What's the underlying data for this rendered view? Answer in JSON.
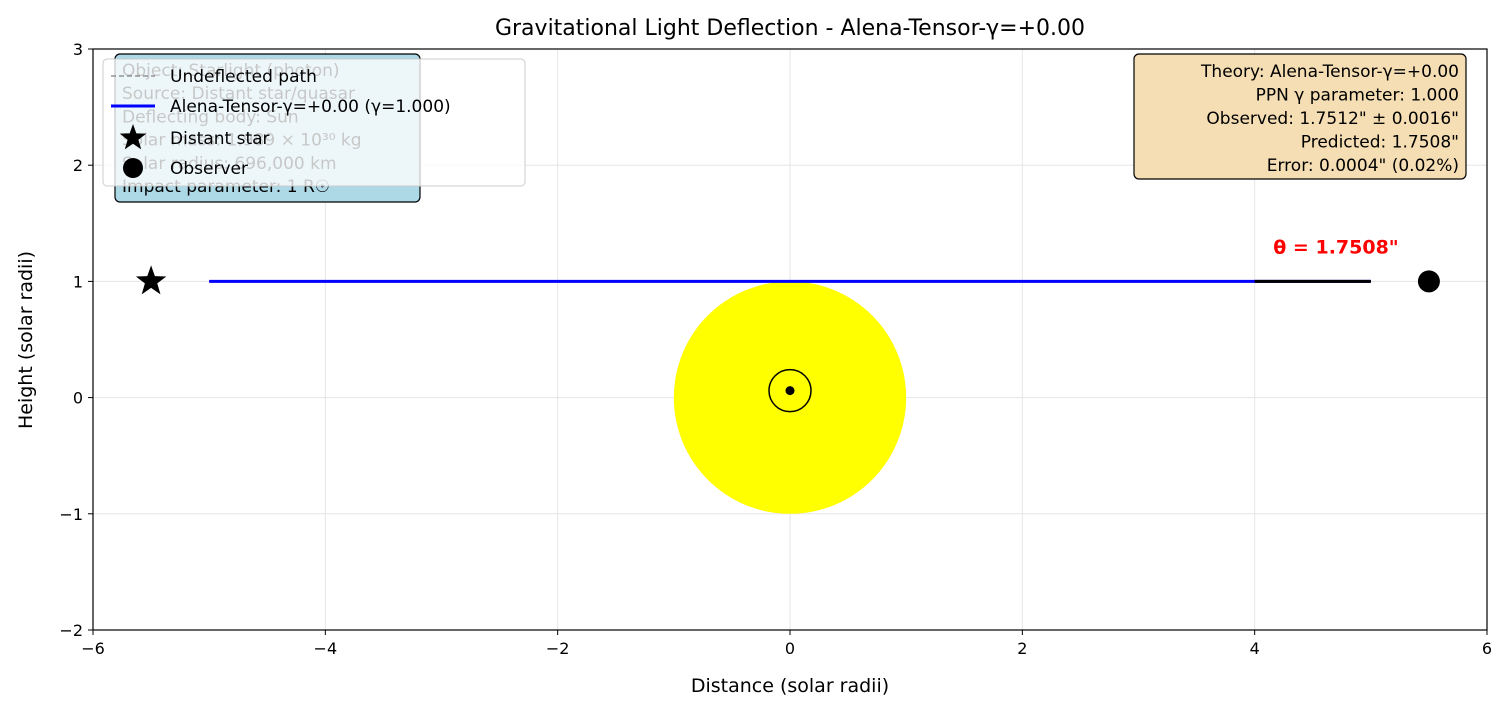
{
  "chart_data": {
    "type": "line",
    "title": "Gravitational Light Deflection - Alena-Tensor-γ=+0.00",
    "xlabel": "Distance (solar radii)",
    "ylabel": "Height (solar radii)",
    "xlim": [
      -6,
      6
    ],
    "ylim": [
      -2,
      3
    ],
    "xticks": [
      -6,
      -4,
      -2,
      0,
      2,
      4,
      6
    ],
    "yticks": [
      -2,
      -1,
      0,
      1,
      2,
      3
    ],
    "grid": true,
    "series": [
      {
        "name": "Undeflected path",
        "style": "dashed",
        "color": "#808080",
        "x": [
          -5,
          5
        ],
        "y": [
          1,
          1
        ]
      },
      {
        "name": "Alena-Tensor-γ=+0.00 (γ=1.000)",
        "style": "solid",
        "color": "#0000ff",
        "x": [
          -5,
          4,
          5
        ],
        "y": [
          1,
          1,
          1
        ]
      },
      {
        "name": "",
        "style": "solid",
        "color": "#000000",
        "x": [
          4,
          5
        ],
        "y": [
          1,
          1
        ]
      }
    ],
    "markers": [
      {
        "name": "Distant star",
        "shape": "star",
        "color": "#000000",
        "x": -5.5,
        "y": 1
      },
      {
        "name": "Observer",
        "shape": "circle",
        "color": "#000000",
        "x": 5.5,
        "y": 1
      }
    ],
    "sun": {
      "x": 0,
      "y": 0,
      "radius": 1,
      "color": "#ffff00",
      "symbol_center": {
        "x": 0,
        "y": 0.06
      }
    },
    "angle_label": {
      "text": "θ = 1.7508\"",
      "x": 4.7,
      "y": 1.3,
      "color": "#ff0000"
    },
    "legend": {
      "placement": "upper-left",
      "entries": [
        "Undeflected path",
        "Alena-Tensor-γ=+0.00 (γ=1.000)",
        "Distant star",
        "Observer"
      ]
    },
    "info_box_left": {
      "color": "#add8e6",
      "placement": "upper-left",
      "lines": [
        "Object: Starlight (photon)",
        "Source: Distant star/quasar",
        "Deflecting body: Sun",
        "Solar mass: 1.989 × 10³⁰ kg",
        "Solar radius: 696,000 km",
        "Impact parameter: 1 R☉"
      ]
    },
    "info_box_right": {
      "color": "#f5deb3",
      "placement": "upper-right",
      "lines": [
        "Theory: Alena-Tensor-γ=+0.00",
        "PPN γ parameter: 1.000",
        "Observed: 1.7512\" ± 0.0016\"",
        "Predicted: 1.7508\"",
        "Error: 0.0004\" (0.02%)"
      ]
    }
  }
}
